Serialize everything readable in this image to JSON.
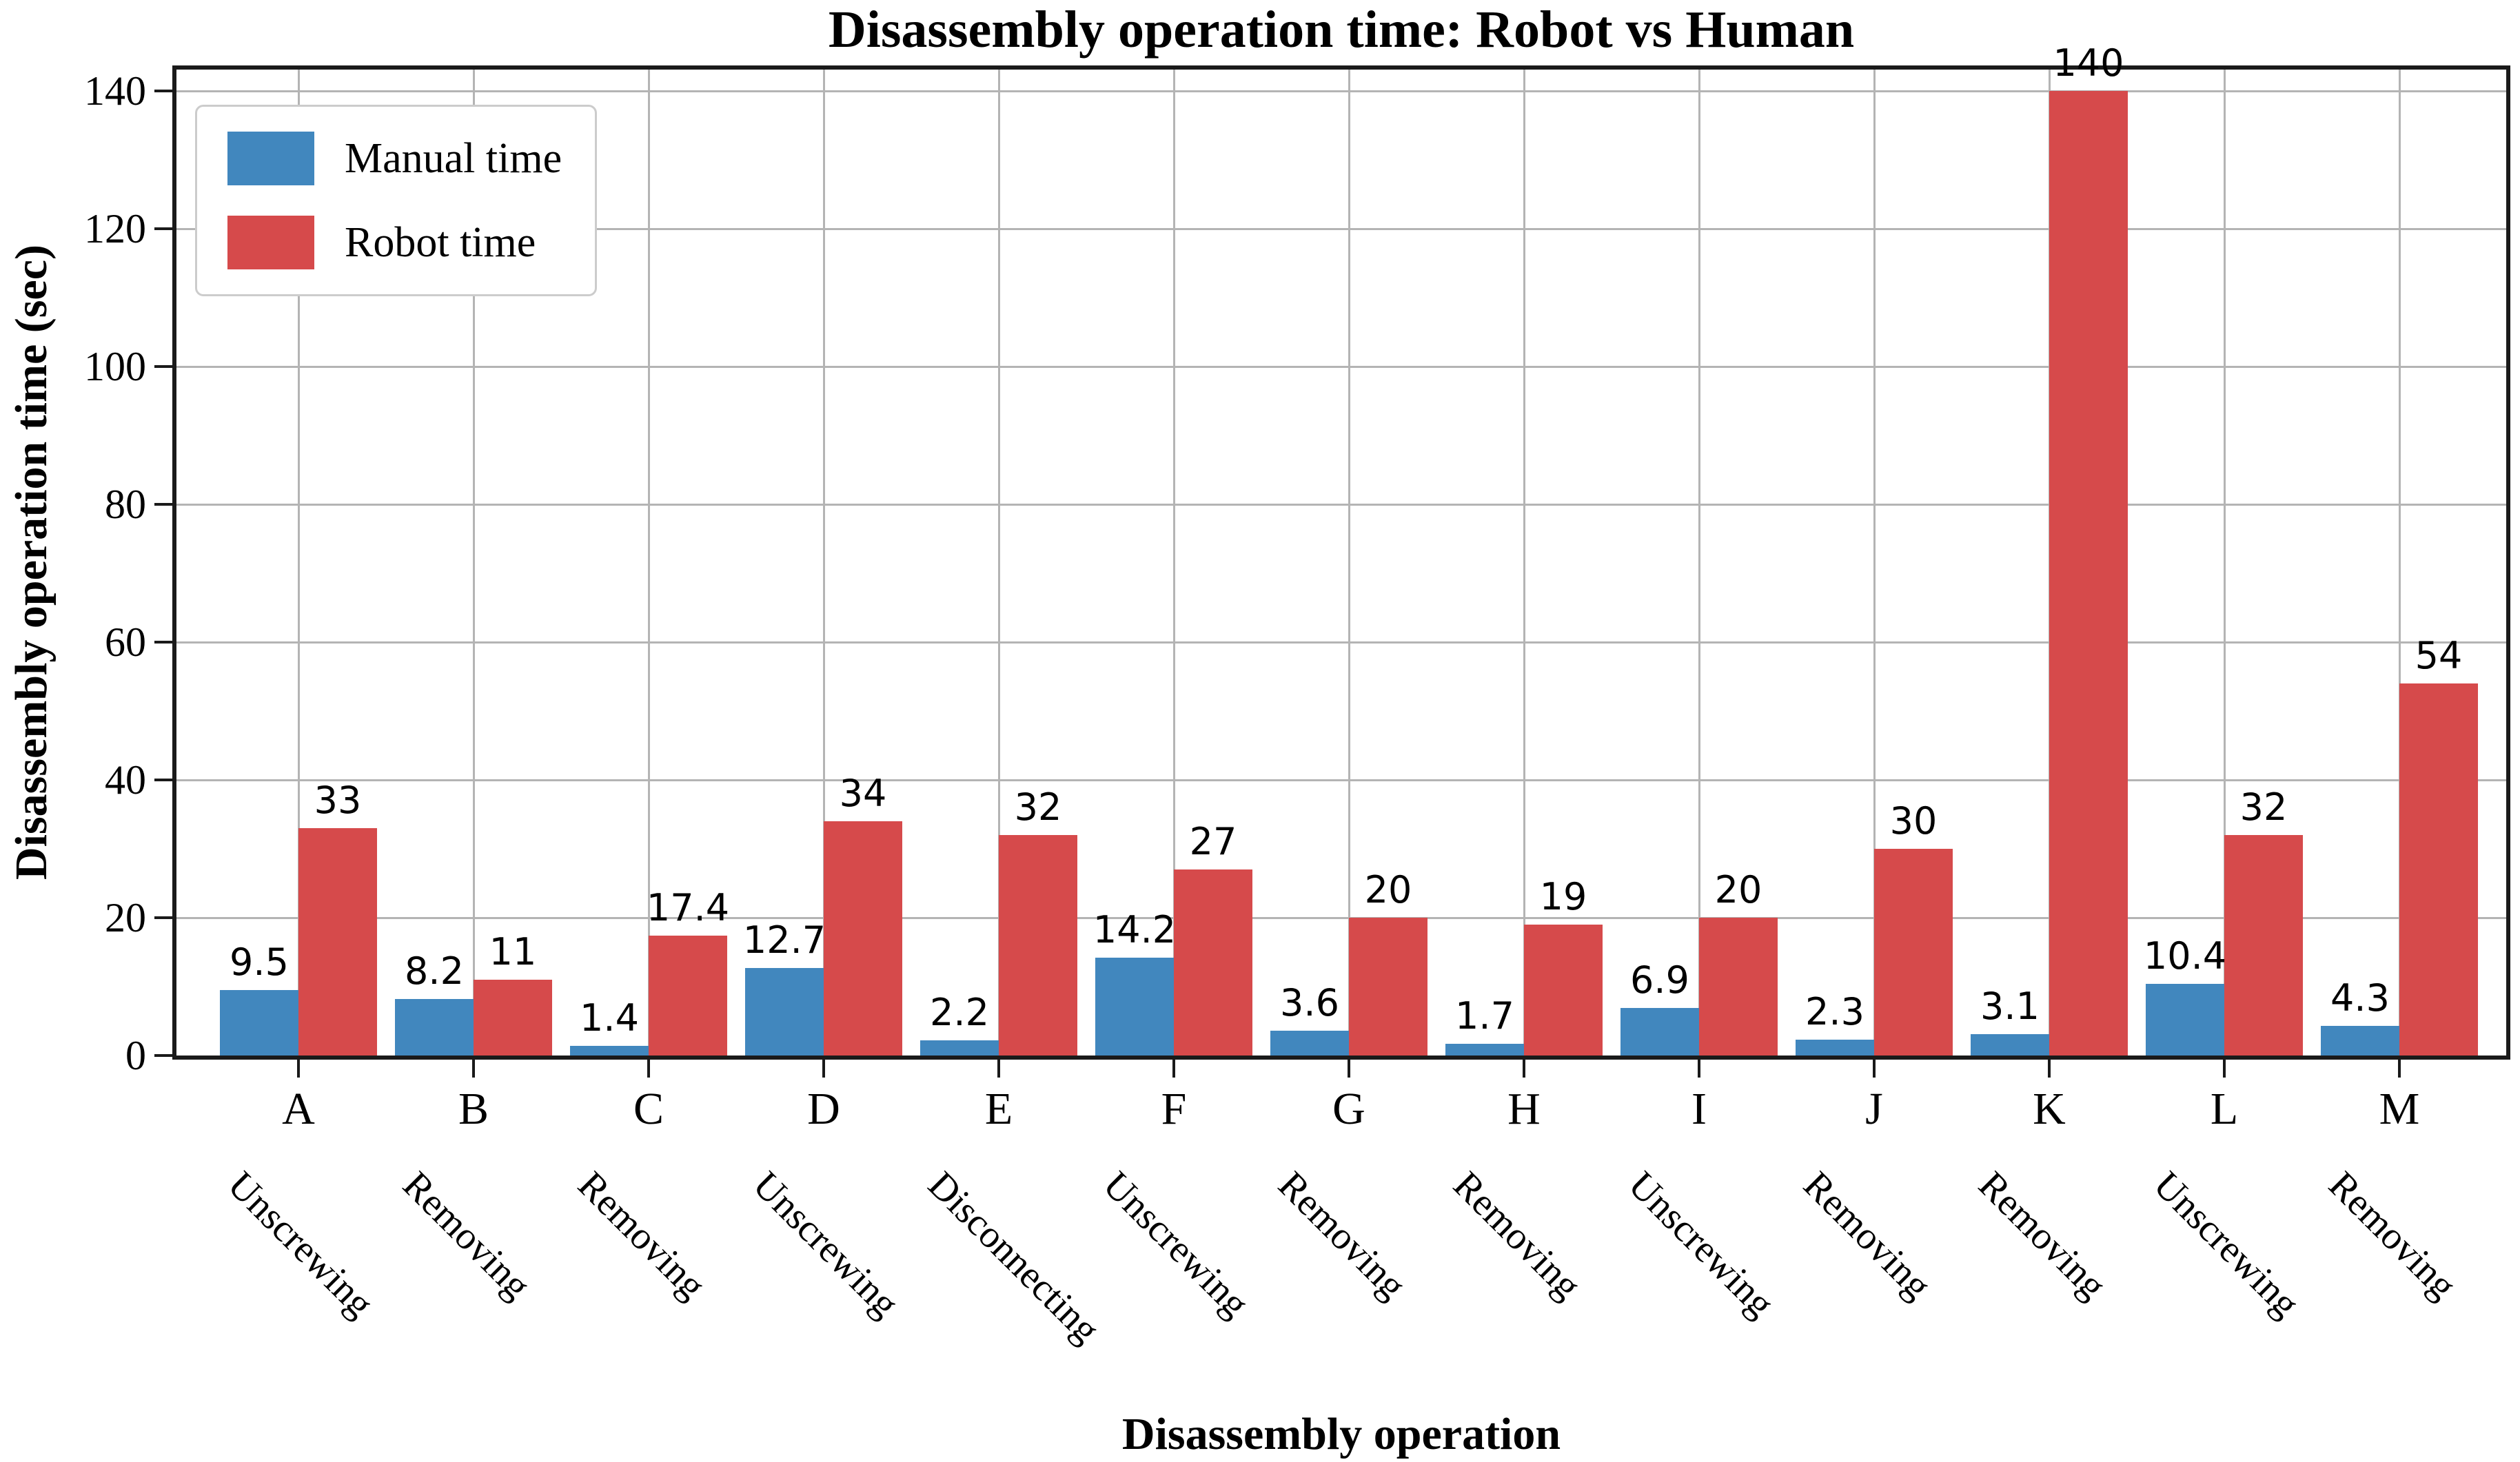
{
  "figure_title": "Disassembly operation time: Robot vs Human",
  "legend": {
    "items": [
      {
        "label": "Manual time",
        "color": "#4187be"
      },
      {
        "label": "Robot time",
        "color": "#d64a4b"
      }
    ]
  },
  "chart_data": {
    "type": "bar",
    "title": "Disassembly operation time: Robot vs Human",
    "xlabel": "Disassembly operation",
    "ylabel": "Disassembly operation time (sec)",
    "categories": [
      "A",
      "B",
      "C",
      "D",
      "E",
      "F",
      "G",
      "H",
      "I",
      "J",
      "K",
      "L",
      "M"
    ],
    "category_operations": [
      "Unscrewing",
      "Removing",
      "Removing",
      "Unscrewing",
      "Disconnecting",
      "Unscrewing",
      "Removing",
      "Removing",
      "Unscrewing",
      "Removing",
      "Removing",
      "Unscrewing",
      "Removing"
    ],
    "series": [
      {
        "name": "Manual time",
        "color": "#4187be",
        "values": [
          9.5,
          8.2,
          1.4,
          12.7,
          2.2,
          14.2,
          3.6,
          1.7,
          6.9,
          2.3,
          3.1,
          10.4,
          4.3
        ]
      },
      {
        "name": "Robot time",
        "color": "#d64a4b",
        "values": [
          33,
          11,
          17.4,
          34,
          32,
          27,
          20,
          19,
          20,
          30,
          140,
          32,
          54
        ]
      }
    ],
    "ylim": [
      0,
      143.1
    ],
    "yticks": [
      0,
      20,
      40,
      60,
      80,
      100,
      120,
      140
    ],
    "grid": true,
    "value_labels": true,
    "legend_position": "upper left",
    "colors": {
      "grid": "#b4b4b4",
      "axis": "#1a1a1a",
      "background": "#ffffff"
    }
  }
}
